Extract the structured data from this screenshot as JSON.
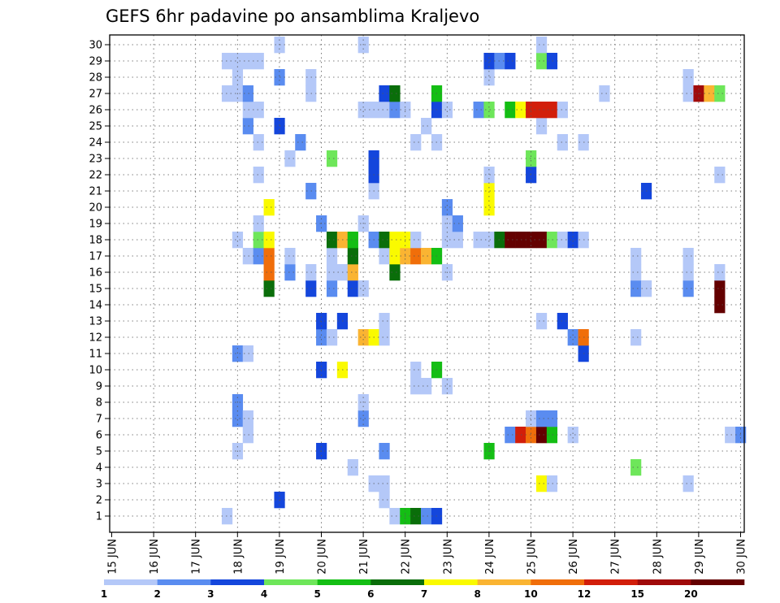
{
  "chart_data": {
    "type": "heatmap",
    "title": "GEFS 6hr padavine po ansamblima Kraljevo",
    "x_labels": [
      "15 JUN",
      "16 JUN",
      "17 JUN",
      "18 JUN",
      "19 JUN",
      "20 JUN",
      "21 JUN",
      "22 JUN",
      "23 JUN",
      "24 JUN",
      "25 JUN",
      "26 JUN",
      "27 JUN",
      "28 JUN",
      "29 JUN",
      "30 JUN"
    ],
    "y_labels": [
      "1",
      "2",
      "3",
      "4",
      "5",
      "6",
      "7",
      "8",
      "9",
      "10",
      "11",
      "12",
      "13",
      "14",
      "15",
      "16",
      "17",
      "18",
      "19",
      "20",
      "21",
      "22",
      "23",
      "24",
      "25",
      "26",
      "27",
      "28",
      "29",
      "30"
    ],
    "steps_per_day": 4,
    "grid": true,
    "legend_placement": "bottom",
    "colorbar": {
      "labels": [
        "1",
        "2",
        "3",
        "4",
        "5",
        "6",
        "7",
        "8",
        "10",
        "12",
        "15",
        "20"
      ],
      "colors": [
        "#b4c8f8",
        "#5a8cf0",
        "#1446dc",
        "#6ee65a",
        "#14be14",
        "#0a6e0a",
        "#fafa00",
        "#fab432",
        "#f06e0a",
        "#d21e0a",
        "#a00a0a",
        "#640000"
      ]
    },
    "cells": [
      [
        11,
        1,
        1
      ],
      [
        11,
        27,
        1
      ],
      [
        11,
        29,
        1
      ],
      [
        12,
        5,
        1
      ],
      [
        12,
        7,
        2
      ],
      [
        12,
        8,
        2
      ],
      [
        12,
        11,
        2
      ],
      [
        12,
        18,
        1
      ],
      [
        12,
        27,
        1
      ],
      [
        12,
        28,
        1
      ],
      [
        12,
        29,
        1
      ],
      [
        13,
        6,
        1
      ],
      [
        13,
        7,
        1
      ],
      [
        13,
        11,
        1
      ],
      [
        13,
        17,
        1
      ],
      [
        13,
        25,
        2
      ],
      [
        13,
        26,
        1
      ],
      [
        13,
        27,
        2
      ],
      [
        13,
        29,
        1
      ],
      [
        14,
        17,
        2
      ],
      [
        14,
        18,
        4
      ],
      [
        14,
        19,
        1
      ],
      [
        14,
        22,
        1
      ],
      [
        14,
        24,
        1
      ],
      [
        14,
        26,
        1
      ],
      [
        14,
        29,
        1
      ],
      [
        15,
        15,
        6
      ],
      [
        15,
        16,
        9
      ],
      [
        15,
        17,
        9
      ],
      [
        15,
        18,
        7
      ],
      [
        15,
        20,
        7
      ],
      [
        16,
        2,
        3
      ],
      [
        16,
        25,
        3
      ],
      [
        16,
        28,
        2
      ],
      [
        16,
        30,
        1
      ],
      [
        17,
        16,
        2
      ],
      [
        17,
        17,
        1
      ],
      [
        17,
        23,
        1
      ],
      [
        18,
        24,
        2
      ],
      [
        19,
        15,
        3
      ],
      [
        19,
        16,
        1
      ],
      [
        19,
        21,
        2
      ],
      [
        19,
        27,
        1
      ],
      [
        19,
        28,
        1
      ],
      [
        20,
        5,
        3
      ],
      [
        20,
        10,
        3
      ],
      [
        20,
        12,
        2
      ],
      [
        20,
        13,
        3
      ],
      [
        20,
        19,
        2
      ],
      [
        21,
        12,
        1
      ],
      [
        21,
        15,
        2
      ],
      [
        21,
        16,
        1
      ],
      [
        21,
        17,
        1
      ],
      [
        21,
        18,
        6
      ],
      [
        21,
        23,
        4
      ],
      [
        22,
        10,
        7
      ],
      [
        22,
        13,
        3
      ],
      [
        22,
        16,
        1
      ],
      [
        22,
        18,
        8
      ],
      [
        23,
        4,
        1
      ],
      [
        23,
        15,
        3
      ],
      [
        23,
        16,
        8
      ],
      [
        23,
        17,
        6
      ],
      [
        23,
        18,
        5
      ],
      [
        24,
        7,
        2
      ],
      [
        24,
        8,
        1
      ],
      [
        24,
        12,
        8
      ],
      [
        24,
        15,
        1
      ],
      [
        24,
        19,
        1
      ],
      [
        24,
        26,
        1
      ],
      [
        24,
        30,
        1
      ],
      [
        25,
        3,
        1
      ],
      [
        25,
        12,
        7
      ],
      [
        25,
        18,
        2
      ],
      [
        25,
        21,
        1
      ],
      [
        25,
        22,
        3
      ],
      [
        25,
        23,
        3
      ],
      [
        25,
        26,
        1
      ],
      [
        26,
        2,
        1
      ],
      [
        26,
        3,
        1
      ],
      [
        26,
        5,
        2
      ],
      [
        26,
        12,
        1
      ],
      [
        26,
        13,
        1
      ],
      [
        26,
        17,
        1
      ],
      [
        26,
        18,
        6
      ],
      [
        26,
        26,
        1
      ],
      [
        26,
        27,
        3
      ],
      [
        27,
        1,
        1
      ],
      [
        27,
        16,
        6
      ],
      [
        27,
        17,
        7
      ],
      [
        27,
        18,
        7
      ],
      [
        27,
        26,
        2
      ],
      [
        27,
        27,
        6
      ],
      [
        28,
        1,
        5
      ],
      [
        28,
        17,
        8
      ],
      [
        28,
        18,
        7
      ],
      [
        28,
        26,
        1
      ],
      [
        29,
        1,
        6
      ],
      [
        29,
        9,
        1
      ],
      [
        29,
        10,
        1
      ],
      [
        29,
        17,
        9
      ],
      [
        29,
        18,
        1
      ],
      [
        29,
        24,
        1
      ],
      [
        30,
        1,
        2
      ],
      [
        30,
        9,
        1
      ],
      [
        30,
        17,
        8
      ],
      [
        30,
        25,
        1
      ],
      [
        31,
        1,
        3
      ],
      [
        31,
        10,
        5
      ],
      [
        31,
        17,
        5
      ],
      [
        31,
        24,
        1
      ],
      [
        31,
        26,
        3
      ],
      [
        31,
        27,
        5
      ],
      [
        32,
        9,
        1
      ],
      [
        32,
        16,
        1
      ],
      [
        32,
        18,
        1
      ],
      [
        32,
        19,
        1
      ],
      [
        32,
        20,
        2
      ],
      [
        32,
        26,
        1
      ],
      [
        33,
        18,
        1
      ],
      [
        33,
        19,
        2
      ],
      [
        35,
        18,
        1
      ],
      [
        35,
        26,
        2
      ],
      [
        36,
        5,
        5
      ],
      [
        36,
        18,
        1
      ],
      [
        36,
        20,
        7
      ],
      [
        36,
        21,
        7
      ],
      [
        36,
        22,
        1
      ],
      [
        36,
        26,
        4
      ],
      [
        36,
        28,
        1
      ],
      [
        36,
        29,
        3
      ],
      [
        37,
        18,
        6
      ],
      [
        37,
        29,
        2
      ],
      [
        38,
        6,
        2
      ],
      [
        38,
        18,
        12
      ],
      [
        38,
        26,
        5
      ],
      [
        38,
        29,
        3
      ],
      [
        39,
        6,
        10
      ],
      [
        39,
        18,
        12
      ],
      [
        39,
        26,
        7
      ],
      [
        40,
        6,
        9
      ],
      [
        40,
        7,
        1
      ],
      [
        40,
        18,
        12
      ],
      [
        40,
        22,
        3
      ],
      [
        40,
        23,
        4
      ],
      [
        40,
        26,
        10
      ],
      [
        41,
        3,
        7
      ],
      [
        41,
        6,
        12
      ],
      [
        41,
        7,
        2
      ],
      [
        41,
        13,
        1
      ],
      [
        41,
        18,
        12
      ],
      [
        41,
        25,
        1
      ],
      [
        41,
        26,
        10
      ],
      [
        41,
        29,
        4
      ],
      [
        41,
        30,
        1
      ],
      [
        42,
        3,
        1
      ],
      [
        42,
        6,
        5
      ],
      [
        42,
        7,
        2
      ],
      [
        42,
        18,
        4
      ],
      [
        42,
        26,
        10
      ],
      [
        42,
        29,
        3
      ],
      [
        43,
        13,
        3
      ],
      [
        43,
        18,
        1
      ],
      [
        43,
        24,
        1
      ],
      [
        43,
        26,
        1
      ],
      [
        44,
        6,
        1
      ],
      [
        44,
        12,
        2
      ],
      [
        44,
        18,
        3
      ],
      [
        45,
        11,
        3
      ],
      [
        45,
        12,
        9
      ],
      [
        45,
        18,
        1
      ],
      [
        45,
        24,
        1
      ],
      [
        47,
        27,
        1
      ],
      [
        50,
        4,
        4
      ],
      [
        50,
        12,
        1
      ],
      [
        50,
        15,
        2
      ],
      [
        50,
        16,
        1
      ],
      [
        50,
        17,
        1
      ],
      [
        51,
        15,
        1
      ],
      [
        51,
        21,
        3
      ],
      [
        55,
        3,
        1
      ],
      [
        55,
        15,
        2
      ],
      [
        55,
        16,
        1
      ],
      [
        55,
        17,
        1
      ],
      [
        55,
        27,
        1
      ],
      [
        55,
        28,
        1
      ],
      [
        56,
        27,
        11
      ],
      [
        57,
        27,
        8
      ],
      [
        58,
        14,
        12
      ],
      [
        58,
        15,
        12
      ],
      [
        58,
        16,
        1
      ],
      [
        58,
        22,
        1
      ],
      [
        58,
        27,
        4
      ],
      [
        59,
        6,
        1
      ],
      [
        60,
        6,
        2
      ]
    ]
  }
}
